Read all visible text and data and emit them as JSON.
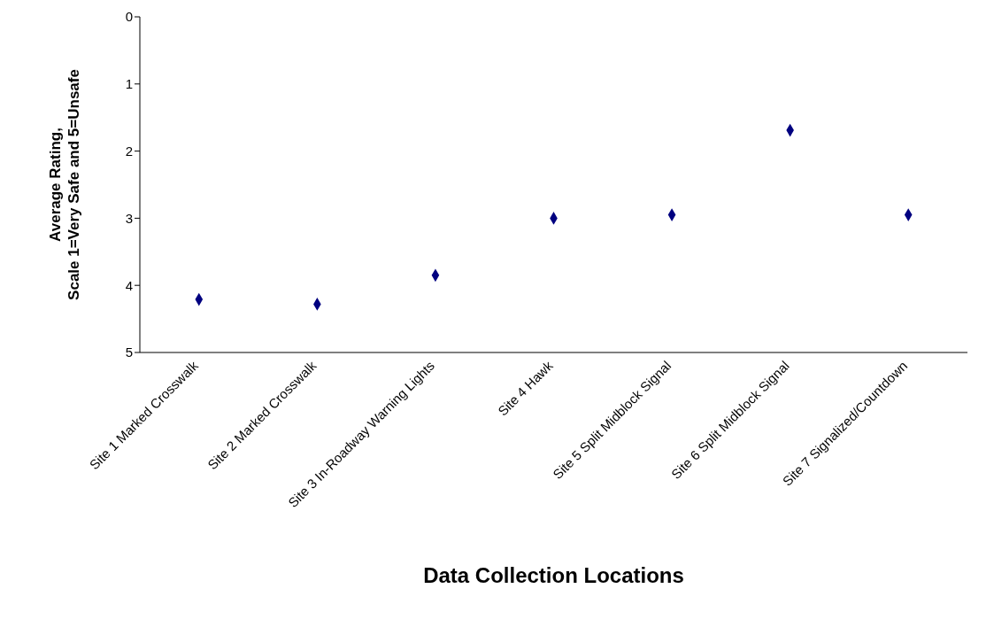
{
  "chart_data": {
    "type": "scatter",
    "xlabel": "Data Collection Locations",
    "ylabel": "Average Rating,\nScale 1=Very Safe and 5=Unsafe",
    "categories": [
      "Site 1 Marked Crosswalk",
      "Site 2 Marked Crosswalk",
      "Site 3 In-Roadway Warning Lights",
      "Site 4 Hawk",
      "Site 5 Split Midblock Signal",
      "Site 6 Split Midblock Signal",
      "Site 7 Signalized/Countdown"
    ],
    "values": [
      4.21,
      4.28,
      3.85,
      3.0,
      2.95,
      1.69,
      2.95
    ],
    "color": "#000080",
    "ylim": [
      5,
      0
    ],
    "yticks": [
      0,
      1,
      2,
      3,
      4,
      5
    ],
    "grid": false,
    "marker": "diamond"
  }
}
